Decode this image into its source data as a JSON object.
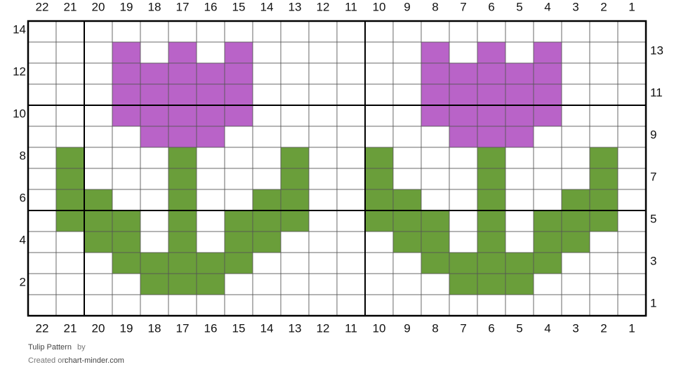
{
  "pattern": {
    "title": "Tulip Pattern",
    "by": "by",
    "created_on": "Created on",
    "site": "chart-minder.com",
    "column_labels": [
      22,
      21,
      20,
      19,
      18,
      17,
      16,
      15,
      14,
      13,
      12,
      11,
      10,
      9,
      8,
      7,
      6,
      5,
      4,
      3,
      2,
      1
    ],
    "colors": {
      "P": "#b963c8",
      "G": "#6a9e3a"
    },
    "rows": [
      {
        "label": 14,
        "cells": "......................"
      },
      {
        "label": 13,
        "cells": "...P.P.P......P.P.P..."
      },
      {
        "label": 12,
        "cells": "...PPPPP......PPPPP..."
      },
      {
        "label": 11,
        "cells": "...PPPPP......PPPPP..."
      },
      {
        "label": 10,
        "cells": "...PPPPP......PPPPP..."
      },
      {
        "label": 9,
        "cells": "....PPP........PPP...."
      },
      {
        "label": 8,
        "cells": ".G...G...G..G...G...G."
      },
      {
        "label": 7,
        "cells": ".G...G...G..G...G...G."
      },
      {
        "label": 6,
        "cells": ".GG..G..GG..GG..G..GG."
      },
      {
        "label": 5,
        "cells": ".GGG.G.GGG..GGG.G.GGG."
      },
      {
        "label": 4,
        "cells": "..GG.G.GG....GG.G.GG.."
      },
      {
        "label": 3,
        "cells": "...GGGGG......GGGGG..."
      },
      {
        "label": 2,
        "cells": "....GGG........GGG...."
      },
      {
        "label": 1,
        "cells": "......................"
      }
    ]
  }
}
